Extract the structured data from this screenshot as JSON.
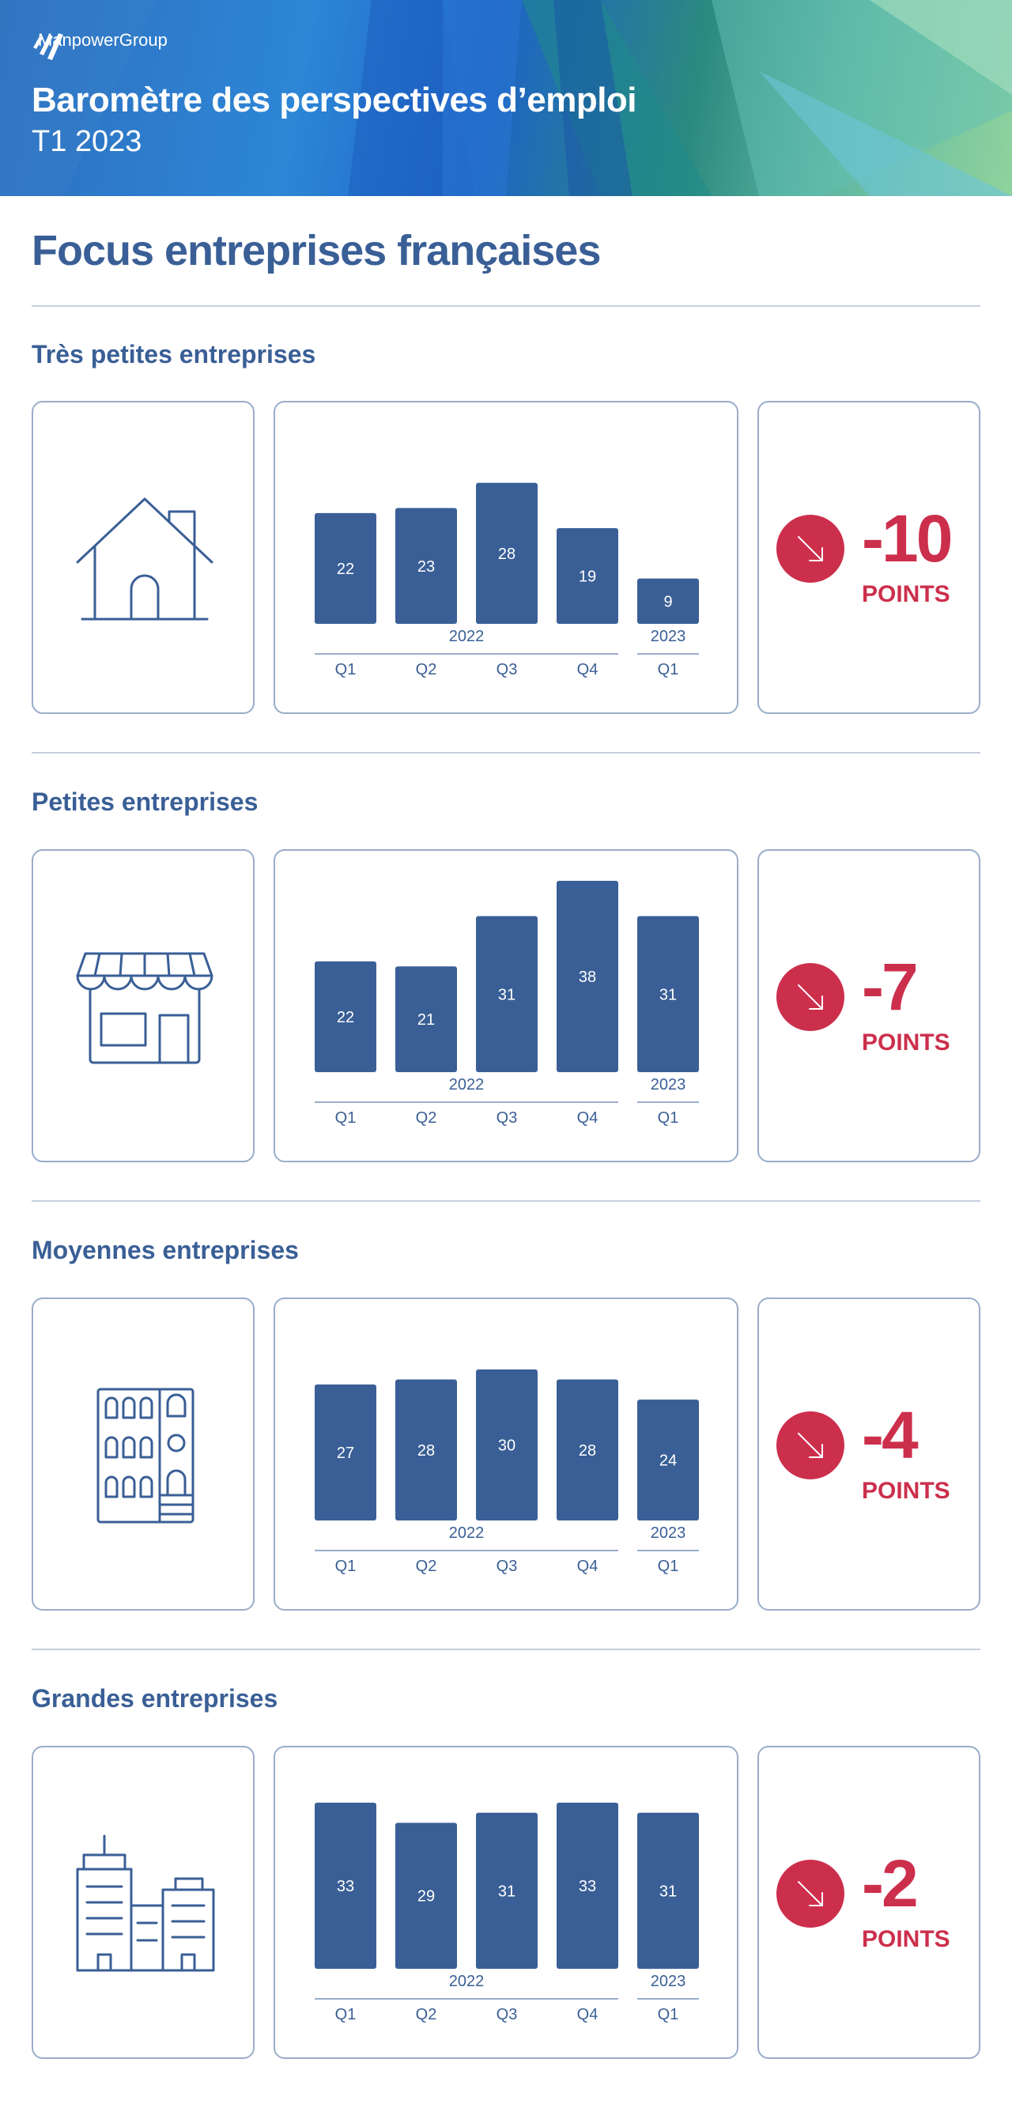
{
  "header": {
    "brand": "ManpowerGroup",
    "title": "Baromètre des perspectives d’emploi",
    "subtitle": "T1 2023",
    "colors": {
      "accent": "#cc2f4c",
      "bar": "#3a5f96",
      "text": "#3a5f96"
    }
  },
  "main_title": "Focus entreprises françaises",
  "sections": [
    {
      "title": "Très petites entreprises",
      "icon": "house-icon",
      "delta": "-10",
      "unit": "POINTS"
    },
    {
      "title": "Petites entreprises",
      "icon": "shop-icon",
      "delta": "-7",
      "unit": "POINTS"
    },
    {
      "title": "Moyennes entreprises",
      "icon": "building-icon",
      "delta": "-4",
      "unit": "POINTS"
    },
    {
      "title": "Grandes entreprises",
      "icon": "office-towers-icon",
      "delta": "-2",
      "unit": "POINTS"
    }
  ],
  "chart_data": [
    {
      "type": "bar",
      "categories": [
        "Q1",
        "Q2",
        "Q3",
        "Q4",
        "Q1"
      ],
      "groups": [
        {
          "label": "2022",
          "count": 4
        },
        {
          "label": "2023",
          "count": 1
        }
      ],
      "values": [
        22,
        23,
        28,
        19,
        9
      ]
    },
    {
      "type": "bar",
      "categories": [
        "Q1",
        "Q2",
        "Q3",
        "Q4",
        "Q1"
      ],
      "groups": [
        {
          "label": "2022",
          "count": 4
        },
        {
          "label": "2023",
          "count": 1
        }
      ],
      "values": [
        22,
        21,
        31,
        38,
        31
      ]
    },
    {
      "type": "bar",
      "categories": [
        "Q1",
        "Q2",
        "Q3",
        "Q4",
        "Q1"
      ],
      "groups": [
        {
          "label": "2022",
          "count": 4
        },
        {
          "label": "2023",
          "count": 1
        }
      ],
      "values": [
        27,
        28,
        30,
        28,
        24
      ]
    },
    {
      "type": "bar",
      "categories": [
        "Q1",
        "Q2",
        "Q3",
        "Q4",
        "Q1"
      ],
      "groups": [
        {
          "label": "2022",
          "count": 4
        },
        {
          "label": "2023",
          "count": 1
        }
      ],
      "values": [
        33,
        29,
        31,
        33,
        31
      ]
    }
  ]
}
